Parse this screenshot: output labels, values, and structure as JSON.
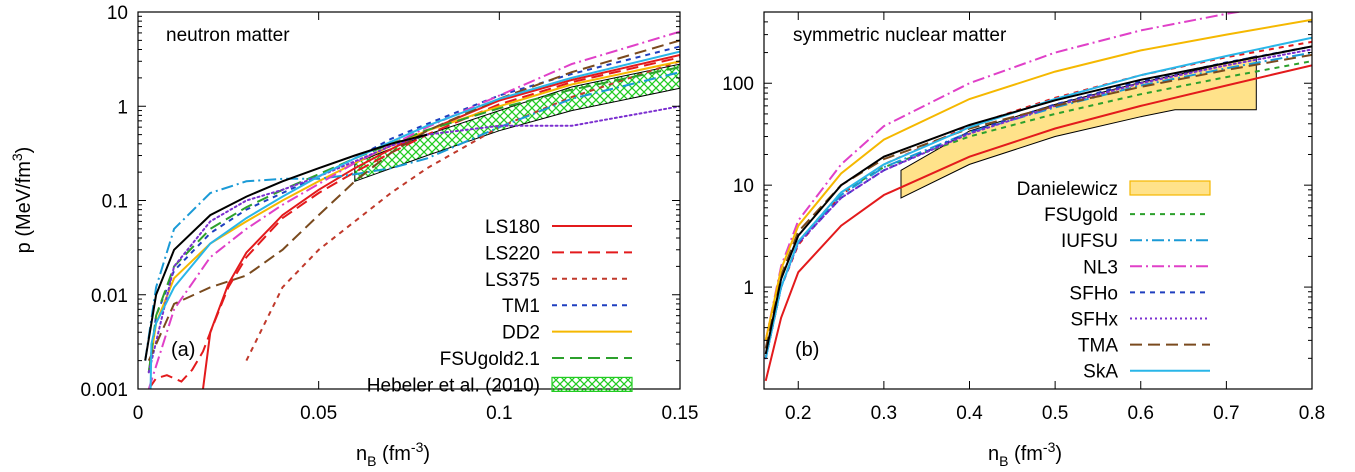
{
  "chart_data": [
    {
      "type": "line",
      "panel_tag": "(a)",
      "title": "neutron matter",
      "xlabel": "n",
      "xlabel_sub": "B",
      "xlabel_unit": "(fm",
      "xlabel_unit_sup": "-3",
      "xlabel_unit_close": ")",
      "ylabel": "p (MeV/fm",
      "ylabel_sup": "3",
      "ylabel_close": ")",
      "x_scale": "linear",
      "y_scale": "log",
      "xlim": [
        0,
        0.15
      ],
      "ylim": [
        0.001,
        10
      ],
      "x_ticks": [
        "0",
        "0.05",
        "0.1",
        "0.15"
      ],
      "y_ticks": [
        "0.001",
        "0.01",
        "0.1",
        "1",
        "10"
      ],
      "legend_position": "bottom-right",
      "grid": false,
      "series": [
        {
          "name": "LS180",
          "color": "#e31a1c",
          "dash": "solid",
          "x": [
            0.018,
            0.02,
            0.025,
            0.03,
            0.04,
            0.05,
            0.06,
            0.07,
            0.08,
            0.1,
            0.12,
            0.15
          ],
          "y": [
            0.001,
            0.004,
            0.013,
            0.028,
            0.07,
            0.13,
            0.22,
            0.35,
            0.55,
            1.15,
            1.9,
            3.5
          ]
        },
        {
          "name": "LS220",
          "color": "#e31a1c",
          "dash": "long",
          "x": [
            0.003,
            0.005,
            0.008,
            0.012,
            0.015,
            0.018,
            0.02,
            0.025,
            0.03,
            0.04,
            0.05,
            0.06,
            0.07,
            0.08,
            0.1,
            0.12,
            0.15
          ],
          "y": [
            0.001,
            0.0013,
            0.0014,
            0.0012,
            0.0016,
            0.0025,
            0.004,
            0.012,
            0.025,
            0.065,
            0.12,
            0.2,
            0.32,
            0.5,
            1.05,
            1.8,
            3.3
          ]
        },
        {
          "name": "LS375",
          "color": "#c0392b",
          "dash": "short",
          "x": [
            0.03,
            0.04,
            0.05,
            0.06,
            0.07,
            0.08,
            0.1,
            0.12,
            0.15
          ],
          "y": [
            0.002,
            0.012,
            0.03,
            0.06,
            0.12,
            0.22,
            0.6,
            1.25,
            3.0
          ]
        },
        {
          "name": "TM1",
          "color": "#1f3fbf",
          "dash": "short",
          "x": [
            0.003,
            0.005,
            0.01,
            0.02,
            0.03,
            0.04,
            0.05,
            0.06,
            0.07,
            0.08,
            0.1,
            0.12,
            0.15
          ],
          "y": [
            0.0015,
            0.006,
            0.018,
            0.045,
            0.08,
            0.12,
            0.18,
            0.28,
            0.45,
            0.65,
            1.3,
            2.2,
            4.3
          ]
        },
        {
          "name": "DD2",
          "color": "#f5b800",
          "dash": "solid",
          "x": [
            0.003,
            0.005,
            0.01,
            0.02,
            0.03,
            0.04,
            0.05,
            0.06,
            0.07,
            0.08,
            0.1,
            0.12,
            0.15
          ],
          "y": [
            0.0015,
            0.005,
            0.015,
            0.035,
            0.06,
            0.1,
            0.16,
            0.25,
            0.38,
            0.55,
            1.0,
            1.7,
            3.0
          ]
        },
        {
          "name": "FSUgold2.1",
          "color": "#2ca02c",
          "dash": "long",
          "x": [
            0.003,
            0.005,
            0.01,
            0.02,
            0.03,
            0.04,
            0.05,
            0.06,
            0.07,
            0.08,
            0.1,
            0.12,
            0.15
          ],
          "y": [
            0.0015,
            0.006,
            0.02,
            0.05,
            0.085,
            0.13,
            0.19,
            0.28,
            0.4,
            0.56,
            0.95,
            1.5,
            2.6
          ]
        },
        {
          "name": "",
          "color": "#1a9ad6",
          "dash": "dashdot",
          "x": [
            0.002,
            0.005,
            0.01,
            0.02,
            0.03,
            0.04,
            0.05,
            0.06,
            0.07,
            0.08,
            0.1,
            0.12,
            0.15
          ],
          "y": [
            0.002,
            0.012,
            0.05,
            0.12,
            0.16,
            0.17,
            0.17,
            0.19,
            0.22,
            0.28,
            0.6,
            1.2,
            2.3
          ]
        },
        {
          "name": "",
          "color": "#e040c8",
          "dash": "dashdot",
          "x": [
            0.003,
            0.01,
            0.02,
            0.03,
            0.04,
            0.05,
            0.06,
            0.08,
            0.1,
            0.12,
            0.15
          ],
          "y": [
            0.001,
            0.007,
            0.025,
            0.05,
            0.09,
            0.15,
            0.25,
            0.6,
            1.3,
            2.8,
            6.2
          ]
        },
        {
          "name": "",
          "color": "#7b2fd0",
          "dash": "dotted",
          "x": [
            0.003,
            0.01,
            0.02,
            0.03,
            0.04,
            0.05,
            0.06,
            0.07,
            0.08,
            0.1,
            0.12,
            0.15
          ],
          "y": [
            0.0015,
            0.02,
            0.06,
            0.1,
            0.13,
            0.18,
            0.26,
            0.38,
            0.5,
            0.62,
            0.62,
            1.0
          ]
        },
        {
          "name": "",
          "color": "#7a4a1e",
          "dash": "long",
          "x": [
            0.003,
            0.01,
            0.02,
            0.03,
            0.04,
            0.05,
            0.06,
            0.07,
            0.08,
            0.1,
            0.12,
            0.15
          ],
          "y": [
            0.002,
            0.008,
            0.012,
            0.016,
            0.03,
            0.07,
            0.16,
            0.32,
            0.55,
            1.2,
            2.3,
            5.0
          ]
        },
        {
          "name": "",
          "color": "#29b6e8",
          "dash": "solid",
          "x": [
            0.0035,
            0.0037,
            0.005,
            0.01,
            0.02,
            0.03,
            0.04,
            0.05,
            0.06,
            0.07,
            0.08,
            0.1,
            0.12,
            0.15
          ],
          "y": [
            0.001,
            0.003,
            0.005,
            0.012,
            0.035,
            0.065,
            0.11,
            0.18,
            0.28,
            0.42,
            0.62,
            1.2,
            2.0,
            3.8
          ]
        },
        {
          "name": "",
          "color": "#000000",
          "dash": "solid",
          "x": [
            0.002,
            0.005,
            0.01,
            0.02,
            0.03,
            0.04,
            0.05,
            0.06,
            0.07,
            0.08
          ],
          "y": [
            0.002,
            0.01,
            0.03,
            0.07,
            0.11,
            0.16,
            0.22,
            0.3,
            0.4,
            0.5
          ]
        }
      ],
      "band": {
        "name": "Hebeler et al. (2010)",
        "color": "#22cc22",
        "x": [
          0.06,
          0.08,
          0.1,
          0.12,
          0.15
        ],
        "upper": [
          0.25,
          0.5,
          0.9,
          1.6,
          2.8
        ],
        "lower": [
          0.16,
          0.3,
          0.55,
          0.9,
          1.55
        ]
      },
      "legend": [
        {
          "label": "LS180",
          "color": "#e31a1c",
          "dash": "solid"
        },
        {
          "label": "LS220",
          "color": "#e31a1c",
          "dash": "long"
        },
        {
          "label": "LS375",
          "color": "#c0392b",
          "dash": "short"
        },
        {
          "label": "TM1",
          "color": "#1f3fbf",
          "dash": "short"
        },
        {
          "label": "DD2",
          "color": "#f5b800",
          "dash": "solid"
        },
        {
          "label": "FSUgold2.1",
          "color": "#2ca02c",
          "dash": "long"
        },
        {
          "label": "Hebeler et al. (2010)",
          "color": "#22cc22",
          "dash": "band"
        }
      ]
    },
    {
      "type": "line",
      "panel_tag": "(b)",
      "title": "symmetric nuclear matter",
      "xlabel": "n",
      "xlabel_sub": "B",
      "xlabel_unit": "(fm",
      "xlabel_unit_sup": "-3",
      "xlabel_unit_close": ")",
      "x_scale": "linear",
      "y_scale": "log",
      "xlim": [
        0.16,
        0.8
      ],
      "ylim": [
        0.1,
        500
      ],
      "x_ticks": [
        "0.2",
        "0.3",
        "0.4",
        "0.5",
        "0.6",
        "0.7",
        "0.8"
      ],
      "y_ticks": [
        "1",
        "10",
        "100"
      ],
      "legend_position": "bottom-right",
      "grid": false,
      "series": [
        {
          "name": "",
          "color": "#e31a1c",
          "dash": "solid",
          "x": [
            0.162,
            0.18,
            0.2,
            0.25,
            0.3,
            0.4,
            0.5,
            0.6,
            0.7,
            0.8
          ],
          "y": [
            0.12,
            0.5,
            1.4,
            4.0,
            8.0,
            19,
            36,
            60,
            95,
            150
          ]
        },
        {
          "name": "",
          "color": "#e31a1c",
          "dash": "short",
          "x": [
            0.162,
            0.18,
            0.2,
            0.25,
            0.3,
            0.4,
            0.5,
            0.6,
            0.7,
            0.8
          ],
          "y": [
            0.2,
            1.0,
            2.6,
            8.0,
            16,
            38,
            72,
            120,
            180,
            255
          ]
        },
        {
          "name": "FSUgold",
          "color": "#2ca02c",
          "dash": "short",
          "x": [
            0.162,
            0.18,
            0.2,
            0.25,
            0.3,
            0.4,
            0.5,
            0.6,
            0.7,
            0.8
          ],
          "y": [
            0.2,
            1.0,
            2.8,
            8.5,
            15,
            30,
            50,
            78,
            115,
            165
          ]
        },
        {
          "name": "IUFSU",
          "color": "#1a9ad6",
          "dash": "dashdot",
          "x": [
            0.162,
            0.18,
            0.2,
            0.25,
            0.3,
            0.4,
            0.5,
            0.6,
            0.7,
            0.8
          ],
          "y": [
            0.2,
            1.0,
            2.8,
            8.0,
            15,
            33,
            58,
            95,
            140,
            200
          ]
        },
        {
          "name": "NL3",
          "color": "#e040c8",
          "dash": "dashdot",
          "x": [
            0.162,
            0.18,
            0.2,
            0.25,
            0.3,
            0.4,
            0.5,
            0.6,
            0.7,
            0.8
          ],
          "y": [
            0.3,
            1.6,
            4.5,
            16,
            38,
            100,
            200,
            330,
            480,
            650
          ]
        },
        {
          "name": "SFHo",
          "color": "#1f3fbf",
          "dash": "short",
          "x": [
            0.162,
            0.18,
            0.2,
            0.25,
            0.3,
            0.4,
            0.5,
            0.6,
            0.7,
            0.8
          ],
          "y": [
            0.2,
            1.0,
            2.7,
            7.5,
            14,
            33,
            62,
            105,
            160,
            230
          ]
        },
        {
          "name": "SFHx",
          "color": "#7b2fd0",
          "dash": "dotted",
          "x": [
            0.162,
            0.18,
            0.2,
            0.25,
            0.3,
            0.4,
            0.5,
            0.6,
            0.7,
            0.8
          ],
          "y": [
            0.2,
            1.0,
            2.7,
            7.5,
            14,
            32,
            60,
            100,
            150,
            215
          ]
        },
        {
          "name": "TMA",
          "color": "#7a4a1e",
          "dash": "long",
          "x": [
            0.162,
            0.18,
            0.2,
            0.25,
            0.3,
            0.4,
            0.5,
            0.6,
            0.7,
            0.8
          ],
          "y": [
            0.25,
            1.3,
            3.5,
            10,
            18,
            36,
            60,
            92,
            135,
            190
          ]
        },
        {
          "name": "SkA",
          "color": "#29b6e8",
          "dash": "solid",
          "x": [
            0.162,
            0.18,
            0.2,
            0.25,
            0.3,
            0.4,
            0.5,
            0.6,
            0.7,
            0.8
          ],
          "y": [
            0.2,
            1.0,
            2.8,
            8.5,
            16,
            37,
            70,
            120,
            185,
            280
          ]
        },
        {
          "name": "",
          "color": "#f5b800",
          "dash": "solid",
          "x": [
            0.162,
            0.18,
            0.2,
            0.25,
            0.3,
            0.4,
            0.5,
            0.6,
            0.7,
            0.8
          ],
          "y": [
            0.3,
            1.5,
            4.0,
            13,
            28,
            70,
            130,
            210,
            300,
            420
          ]
        },
        {
          "name": "",
          "color": "#000000",
          "dash": "solid",
          "x": [
            0.162,
            0.18,
            0.2,
            0.25,
            0.3,
            0.4,
            0.5,
            0.6,
            0.7,
            0.8
          ],
          "y": [
            0.22,
            1.2,
            3.2,
            10,
            19,
            39,
            68,
            108,
            158,
            230
          ]
        }
      ],
      "band": {
        "name": "Danielewicz",
        "color": "#f5b800",
        "fill": "#ffe28a",
        "x": [
          0.32,
          0.4,
          0.5,
          0.6,
          0.64,
          0.735
        ],
        "upper": [
          14,
          34,
          62,
          102,
          120,
          185
        ],
        "lower": [
          7.5,
          16,
          30,
          47,
          55,
          55
        ]
      },
      "legend": [
        {
          "label": "Danielewicz",
          "color": "#f5b800",
          "dash": "band"
        },
        {
          "label": "FSUgold",
          "color": "#2ca02c",
          "dash": "short"
        },
        {
          "label": "IUFSU",
          "color": "#1a9ad6",
          "dash": "dashdot"
        },
        {
          "label": "NL3",
          "color": "#e040c8",
          "dash": "dashdot"
        },
        {
          "label": "SFHo",
          "color": "#1f3fbf",
          "dash": "short"
        },
        {
          "label": "SFHx",
          "color": "#7b2fd0",
          "dash": "dotted"
        },
        {
          "label": "TMA",
          "color": "#7a4a1e",
          "dash": "long"
        },
        {
          "label": "SkA",
          "color": "#29b6e8",
          "dash": "solid"
        }
      ]
    }
  ]
}
